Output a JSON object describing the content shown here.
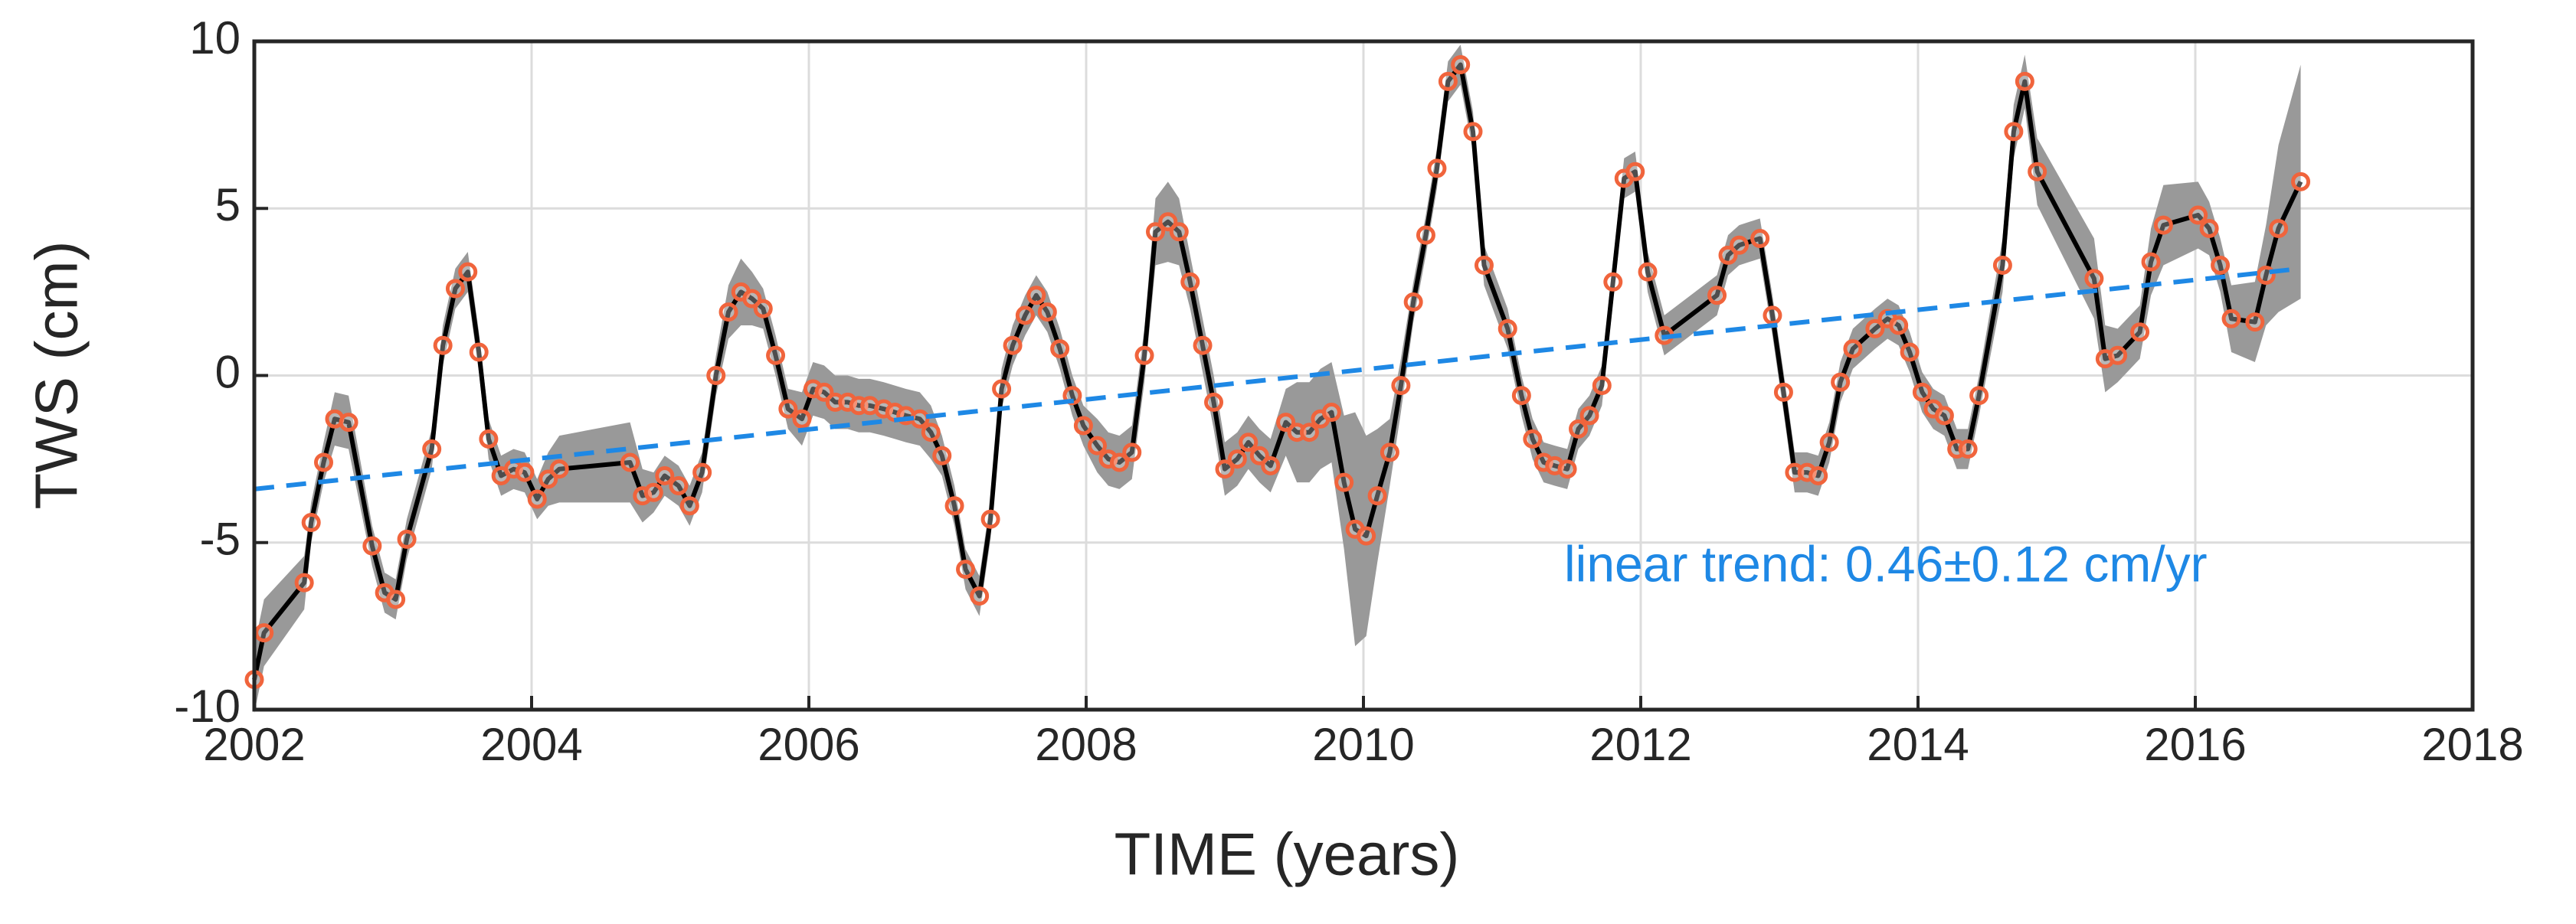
{
  "chart_data": {
    "type": "line",
    "xlabel": "TIME (years)",
    "ylabel": "TWS (cm)",
    "xlim": [
      2002,
      2018
    ],
    "xticks": [
      2002,
      2004,
      2006,
      2008,
      2010,
      2012,
      2014,
      2016,
      2018
    ],
    "ylim": [
      -10,
      10
    ],
    "yticks": [
      -10,
      -5,
      0,
      5,
      10
    ],
    "grid": true,
    "x": [
      2002.0,
      2002.07,
      2002.36,
      2002.41,
      2002.5,
      2002.58,
      2002.68,
      2002.85,
      2002.94,
      2003.02,
      2003.1,
      2003.28,
      2003.36,
      2003.45,
      2003.54,
      2003.62,
      2003.69,
      2003.78,
      2003.87,
      2003.95,
      2004.04,
      2004.12,
      2004.2,
      2004.71,
      2004.8,
      2004.88,
      2004.96,
      2005.06,
      2005.14,
      2005.23,
      2005.33,
      2005.42,
      2005.51,
      2005.59,
      2005.67,
      2005.76,
      2005.85,
      2005.95,
      2006.03,
      2006.11,
      2006.19,
      2006.28,
      2006.36,
      2006.44,
      2006.54,
      2006.62,
      2006.7,
      2006.8,
      2006.88,
      2006.96,
      2007.05,
      2007.13,
      2007.23,
      2007.31,
      2007.39,
      2007.47,
      2007.56,
      2007.64,
      2007.72,
      2007.81,
      2007.9,
      2007.98,
      2008.08,
      2008.16,
      2008.24,
      2008.33,
      2008.42,
      2008.5,
      2008.59,
      2008.67,
      2008.75,
      2008.84,
      2008.92,
      2009.0,
      2009.09,
      2009.17,
      2009.25,
      2009.33,
      2009.44,
      2009.52,
      2009.61,
      2009.69,
      2009.77,
      2009.86,
      2009.94,
      2010.02,
      2010.1,
      2010.19,
      2010.27,
      2010.36,
      2010.45,
      2010.53,
      2010.61,
      2010.7,
      2010.79,
      2010.87,
      2011.04,
      2011.14,
      2011.22,
      2011.3,
      2011.38,
      2011.47,
      2011.55,
      2011.63,
      2011.72,
      2011.8,
      2011.88,
      2011.96,
      2012.05,
      2012.17,
      2012.55,
      2012.63,
      2012.71,
      2012.86,
      2012.95,
      2013.03,
      2013.11,
      2013.2,
      2013.28,
      2013.36,
      2013.44,
      2013.53,
      2013.69,
      2013.78,
      2013.86,
      2013.94,
      2014.03,
      2014.11,
      2014.19,
      2014.28,
      2014.36,
      2014.44,
      2014.61,
      2014.69,
      2014.77,
      2014.86,
      2015.27,
      2015.35,
      2015.44,
      2015.6,
      2015.68,
      2015.77,
      2016.02,
      2016.1,
      2016.18,
      2016.26,
      2016.43,
      2016.51,
      2016.6,
      2016.76
    ],
    "series": [
      {
        "color": "#000000",
        "marker_color": "#f0643c",
        "band_color": "#999999",
        "values": [
          -9.1,
          -7.7,
          -6.2,
          -4.4,
          -2.6,
          -1.3,
          -1.4,
          -5.1,
          -6.5,
          -6.7,
          -4.9,
          -2.2,
          0.9,
          2.6,
          3.1,
          0.7,
          -1.9,
          -3.0,
          -2.8,
          -2.9,
          -3.7,
          -3.1,
          -2.8,
          -2.6,
          -3.6,
          -3.5,
          -3.0,
          -3.3,
          -3.9,
          -2.9,
          0.0,
          1.9,
          2.5,
          2.3,
          2.0,
          0.6,
          -1.0,
          -1.3,
          -0.4,
          -0.5,
          -0.8,
          -0.8,
          -0.9,
          -0.9,
          -1.0,
          -1.1,
          -1.2,
          -1.3,
          -1.7,
          -2.4,
          -3.9,
          -5.8,
          -6.6,
          -4.3,
          -0.4,
          0.9,
          1.8,
          2.4,
          1.9,
          0.8,
          -0.6,
          -1.5,
          -2.1,
          -2.5,
          -2.6,
          -2.3,
          0.6,
          4.3,
          4.6,
          4.3,
          2.8,
          0.9,
          -0.8,
          -2.8,
          -2.5,
          -2.0,
          -2.4,
          -2.7,
          -1.4,
          -1.7,
          -1.7,
          -1.3,
          -1.1,
          -3.2,
          -4.6,
          -4.8,
          -3.6,
          -2.3,
          -0.3,
          2.2,
          4.2,
          6.2,
          8.8,
          9.3,
          7.3,
          3.3,
          1.4,
          -0.6,
          -1.9,
          -2.6,
          -2.7,
          -2.8,
          -1.6,
          -1.2,
          -0.3,
          2.8,
          5.9,
          6.1,
          3.1,
          1.2,
          2.4,
          3.6,
          3.9,
          4.1,
          1.8,
          -0.5,
          -2.9,
          -2.9,
          -3.0,
          -2.0,
          -0.2,
          0.8,
          1.4,
          1.7,
          1.5,
          0.7,
          -0.5,
          -1.0,
          -1.2,
          -2.2,
          -2.2,
          -0.6,
          3.3,
          7.3,
          8.8,
          6.1,
          2.9,
          0.5,
          0.6,
          1.3,
          3.4,
          4.5,
          4.8,
          4.4,
          3.3,
          1.7,
          1.6,
          3.0,
          4.4,
          5.8
        ],
        "errors": [
          1.0,
          1.0,
          0.8,
          0.6,
          0.6,
          0.8,
          0.8,
          0.6,
          0.6,
          0.6,
          0.6,
          0.6,
          0.6,
          0.6,
          0.6,
          0.6,
          0.6,
          0.6,
          0.6,
          0.6,
          0.6,
          0.8,
          1.0,
          1.2,
          0.8,
          0.6,
          0.6,
          0.6,
          0.6,
          0.6,
          0.6,
          0.8,
          1.0,
          0.8,
          0.6,
          0.6,
          0.6,
          0.8,
          0.8,
          0.8,
          0.8,
          0.8,
          0.8,
          0.8,
          0.8,
          0.8,
          0.8,
          0.8,
          0.8,
          0.6,
          0.6,
          0.6,
          0.6,
          0.6,
          0.6,
          0.6,
          0.6,
          0.6,
          0.6,
          0.6,
          0.6,
          0.6,
          0.8,
          0.8,
          0.8,
          0.8,
          0.8,
          1.0,
          1.2,
          1.0,
          0.8,
          0.8,
          0.8,
          0.8,
          0.8,
          0.8,
          0.8,
          0.8,
          1.0,
          1.5,
          1.5,
          1.5,
          1.5,
          2.0,
          3.5,
          3.0,
          2.0,
          1.0,
          0.8,
          0.6,
          0.6,
          0.6,
          0.6,
          0.6,
          0.6,
          0.6,
          0.6,
          0.6,
          0.6,
          0.6,
          0.6,
          0.6,
          0.6,
          0.6,
          0.6,
          0.6,
          0.6,
          0.6,
          0.6,
          0.6,
          0.6,
          0.6,
          0.6,
          0.6,
          0.6,
          0.6,
          0.6,
          0.6,
          0.6,
          0.6,
          0.6,
          0.6,
          0.6,
          0.6,
          0.6,
          0.6,
          0.6,
          0.6,
          0.6,
          0.6,
          0.6,
          0.6,
          0.8,
          0.8,
          0.8,
          1.0,
          1.2,
          1.0,
          0.8,
          0.8,
          1.0,
          1.2,
          1.0,
          0.8,
          0.8,
          1.0,
          1.2,
          1.5,
          2.5,
          3.5
        ]
      }
    ],
    "trend": {
      "x": [
        2002,
        2016.76
      ],
      "values": [
        -3.4,
        3.2
      ],
      "color": "#1e88e5",
      "label": "linear trend: 0.46±0.12 cm/yr"
    }
  }
}
